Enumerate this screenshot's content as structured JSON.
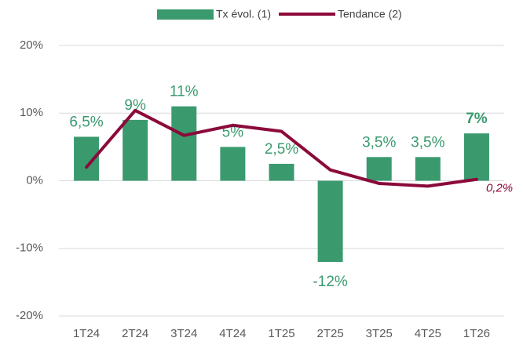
{
  "chart_data": {
    "type": "bar_line",
    "categories": [
      "1T24",
      "2T24",
      "3T24",
      "4T24",
      "1T25",
      "2T25",
      "3T25",
      "4T25",
      "1T26"
    ],
    "series": [
      {
        "name": "Tx évol. (1)",
        "color": "#3a9a6e",
        "type": "bar",
        "values": [
          6.5,
          9,
          11,
          5,
          2.5,
          -12,
          3.5,
          3.5,
          7
        ],
        "value_labels": [
          "6,5%",
          "9%",
          "11%",
          "5%",
          "2,5%",
          "-12%",
          "3,5%",
          "3,5%",
          "7%"
        ]
      },
      {
        "name": "Tendance (2)",
        "color": "#8b0a3a",
        "type": "line",
        "values": [
          2,
          10.4,
          6.7,
          8.2,
          7.3,
          1.6,
          -0.4,
          -0.8,
          0.2
        ],
        "value_labels": [
          null,
          null,
          null,
          null,
          null,
          null,
          null,
          null,
          "0,2%"
        ]
      }
    ],
    "ylim": [
      -20,
      20
    ],
    "yticks": [
      {
        "value": -20,
        "label": "-20%"
      },
      {
        "value": -10,
        "label": "-10%"
      },
      {
        "value": 0,
        "label": "0%"
      },
      {
        "value": 10,
        "label": "10%"
      },
      {
        "value": 20,
        "label": "20%"
      }
    ],
    "grid": true,
    "legend": "top"
  }
}
